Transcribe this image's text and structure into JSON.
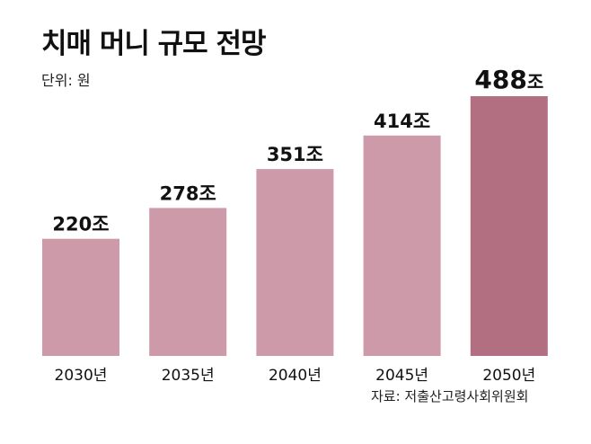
{
  "title": "치매 머니 규모 전망",
  "unit_label": "단위: 원",
  "source": "자료: 저출산고령사회위원회",
  "colors": {
    "bar": "#cc9aa8",
    "bar_highlight": "#b26f82",
    "text": "#111111"
  },
  "chart_data": {
    "type": "bar",
    "title": "치매 머니 규모 전망",
    "unit": "단위: 원",
    "categories": [
      "2030년",
      "2035년",
      "2040년",
      "2045년",
      "2050년"
    ],
    "values": [
      220,
      278,
      351,
      414,
      488
    ],
    "value_labels": [
      "220",
      "278",
      "351",
      "414",
      "488"
    ],
    "value_suffix": "조",
    "highlight_index": 4,
    "ylim": [
      0,
      488
    ],
    "grid": false,
    "legend": "none"
  }
}
